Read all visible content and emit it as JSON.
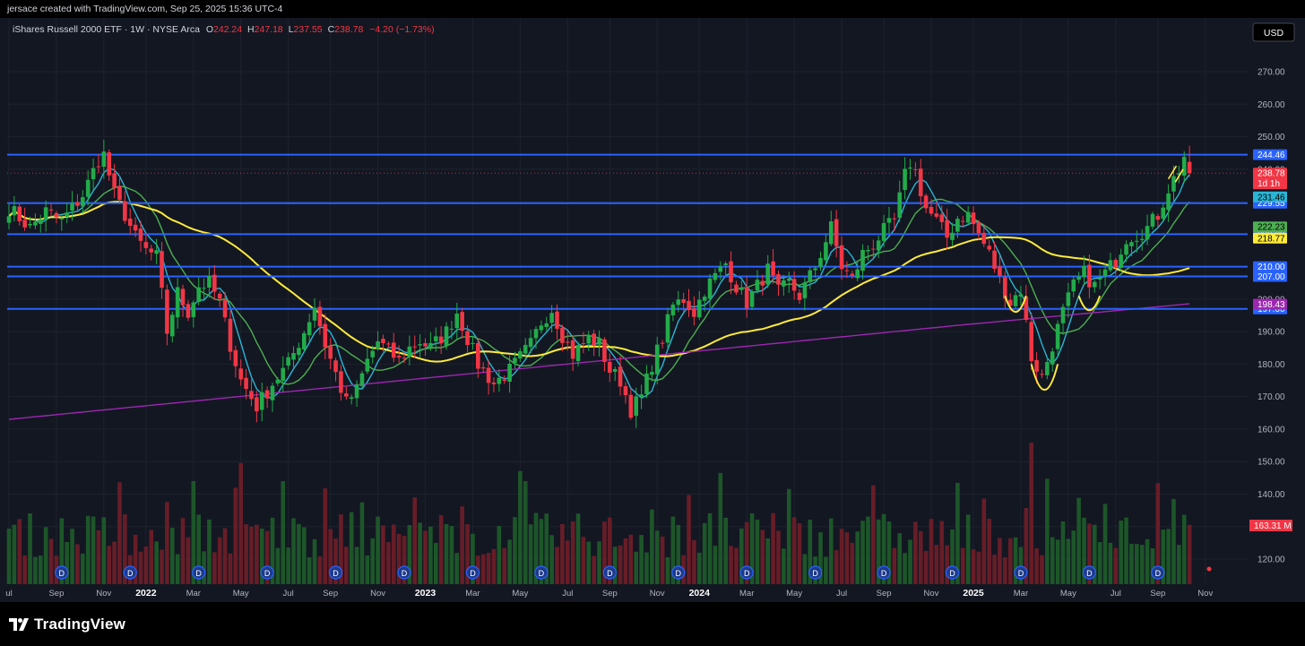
{
  "header": {
    "credit": "jersace created with TradingView.com, Sep 25, 2025 15:36 UTC-4"
  },
  "legend": {
    "symbol": "iShares Russell 2000 ETF · 1W · NYSE Arca",
    "o_label": "O",
    "o_value": "242.24",
    "h_label": "H",
    "h_value": "247.18",
    "l_label": "L",
    "l_value": "237.55",
    "c_label": "C",
    "c_value": "238.78",
    "change": "−4.20 (−1.73%)"
  },
  "currency_button": "USD",
  "footer": {
    "brand": "TradingView"
  },
  "colors": {
    "background": "#131722",
    "up": "#26a69a",
    "up_candle": "#22ab4a",
    "down": "#f23645",
    "level_line": "#2962ff",
    "ema_short": "#29b6d6",
    "ema_mid": "#4caf50",
    "sma_long": "#ffeb3b",
    "sma_200": "#9c27b0"
  },
  "chart_data": {
    "type": "candlestick",
    "interval": "1W",
    "y_axis": {
      "min": 110,
      "max": 280,
      "ticks": [
        120,
        130,
        140,
        150,
        160,
        170,
        180,
        190,
        200,
        210,
        220,
        230,
        240,
        250,
        260,
        270
      ]
    },
    "x_axis": {
      "labels": [
        "ul",
        "Sep",
        "Nov",
        "2022",
        "Mar",
        "May",
        "Jul",
        "Sep",
        "Nov",
        "2023",
        "Mar",
        "May",
        "Jul",
        "Sep",
        "Nov",
        "2024",
        "Mar",
        "May",
        "Jul",
        "Sep",
        "Nov",
        "2025",
        "Mar",
        "May",
        "Jul",
        "Sep",
        "Nov"
      ],
      "bold_labels": [
        "2022",
        "2023",
        "2024",
        "2025"
      ],
      "week_index": [
        0,
        9,
        18,
        26,
        35,
        44,
        53,
        61,
        70,
        79,
        88,
        97,
        106,
        114,
        123,
        131,
        140,
        149,
        158,
        166,
        175,
        183,
        192,
        201,
        210,
        218,
        227
      ]
    },
    "levels": [
      {
        "price": 244.46,
        "label": "244.46"
      },
      {
        "price": 229.55,
        "label": "229.55"
      },
      {
        "price": 220.0,
        "label": "220.00"
      },
      {
        "price": 210.0,
        "label": "210.00"
      },
      {
        "price": 207.0,
        "label": "207.00"
      },
      {
        "price": 197.0,
        "label": "197.00"
      }
    ],
    "price_tags": [
      {
        "price": 238.78,
        "label": "238.78",
        "sub": "1d 1h",
        "color": "#f23645"
      },
      {
        "price": 231.46,
        "label": "231.46",
        "color": "#29b6d6"
      },
      {
        "price": 222.23,
        "label": "222.23",
        "color": "#4caf50"
      },
      {
        "price": 218.77,
        "label": "218.77",
        "color": "#ffeb3b"
      },
      {
        "price": 198.43,
        "label": "198.43",
        "color": "#9c27b0"
      }
    ],
    "volume_tag": {
      "label": "163.31 M",
      "color": "#f23645"
    },
    "last_close": 238.78,
    "anchors": [
      [
        0,
        228
      ],
      [
        4,
        222
      ],
      [
        7,
        227
      ],
      [
        10,
        224
      ],
      [
        14,
        232
      ],
      [
        17,
        243
      ],
      [
        18,
        244.5
      ],
      [
        20,
        232
      ],
      [
        22,
        226
      ],
      [
        24,
        219
      ],
      [
        26,
        215
      ],
      [
        28,
        213
      ],
      [
        30,
        190
      ],
      [
        32,
        202
      ],
      [
        34,
        196
      ],
      [
        36,
        204
      ],
      [
        38,
        205
      ],
      [
        40,
        199
      ],
      [
        42,
        186
      ],
      [
        44,
        175
      ],
      [
        47,
        167
      ],
      [
        50,
        174
      ],
      [
        53,
        180
      ],
      [
        56,
        190
      ],
      [
        58,
        198
      ],
      [
        60,
        186
      ],
      [
        62,
        177
      ],
      [
        64,
        168
      ],
      [
        66,
        172
      ],
      [
        68,
        181
      ],
      [
        70,
        187
      ],
      [
        72,
        184
      ],
      [
        74,
        181
      ],
      [
        76,
        185
      ],
      [
        78,
        187
      ],
      [
        80,
        185
      ],
      [
        83,
        190
      ],
      [
        85,
        196
      ],
      [
        87,
        188
      ],
      [
        89,
        180
      ],
      [
        92,
        174
      ],
      [
        95,
        178
      ],
      [
        97,
        182
      ],
      [
        99,
        186
      ],
      [
        101,
        193
      ],
      [
        103,
        197
      ],
      [
        105,
        189
      ],
      [
        107,
        183
      ],
      [
        110,
        188
      ],
      [
        112,
        186
      ],
      [
        114,
        178
      ],
      [
        116,
        175
      ],
      [
        118,
        166
      ],
      [
        120,
        170
      ],
      [
        122,
        180
      ],
      [
        124,
        188
      ],
      [
        126,
        198
      ],
      [
        128,
        200
      ],
      [
        130,
        196
      ],
      [
        132,
        203
      ],
      [
        134,
        207
      ],
      [
        136,
        211
      ],
      [
        138,
        204
      ],
      [
        140,
        199
      ],
      [
        142,
        204
      ],
      [
        144,
        209
      ],
      [
        146,
        202
      ],
      [
        148,
        205
      ],
      [
        150,
        201
      ],
      [
        153,
        210
      ],
      [
        155,
        218
      ],
      [
        156,
        222
      ],
      [
        158,
        210
      ],
      [
        160,
        206
      ],
      [
        162,
        214
      ],
      [
        164,
        217
      ],
      [
        166,
        221
      ],
      [
        168,
        224
      ],
      [
        170,
        238
      ],
      [
        171,
        242
      ],
      [
        172,
        239
      ],
      [
        174,
        228
      ],
      [
        176,
        224
      ],
      [
        178,
        219
      ],
      [
        180,
        225
      ],
      [
        182,
        226
      ],
      [
        184,
        220
      ],
      [
        186,
        214
      ],
      [
        188,
        206
      ],
      [
        190,
        199
      ],
      [
        192,
        203
      ],
      [
        194,
        182
      ],
      [
        196,
        176
      ],
      [
        198,
        186
      ],
      [
        200,
        196
      ],
      [
        202,
        204
      ],
      [
        204,
        208
      ],
      [
        206,
        204
      ],
      [
        208,
        208
      ],
      [
        210,
        212
      ],
      [
        212,
        219
      ],
      [
        214,
        220
      ],
      [
        216,
        222
      ],
      [
        218,
        226
      ],
      [
        220,
        234
      ],
      [
        222,
        240
      ],
      [
        223,
        244
      ],
      [
        224,
        238.78
      ]
    ],
    "moving_averages": [
      {
        "color": "#29b6d6",
        "period": 5
      },
      {
        "color": "#4caf50",
        "period": 11
      },
      {
        "color": "#ffeb3b",
        "period": 40
      },
      {
        "color": "#9c27b0",
        "period": 200
      }
    ],
    "dividend_markers": [
      {
        "week": 10,
        "label": "D"
      },
      {
        "week": 23,
        "label": "D"
      },
      {
        "week": 36,
        "label": "D"
      },
      {
        "week": 49,
        "label": "D"
      },
      {
        "week": 62,
        "label": "D"
      },
      {
        "week": 75,
        "label": "D"
      },
      {
        "week": 88,
        "label": "D"
      },
      {
        "week": 101,
        "label": "D"
      },
      {
        "week": 114,
        "label": "D"
      },
      {
        "week": 127,
        "label": "D"
      },
      {
        "week": 140,
        "label": "D"
      },
      {
        "week": 153,
        "label": "D"
      },
      {
        "week": 166,
        "label": "D"
      },
      {
        "week": 179,
        "label": "D"
      },
      {
        "week": 192,
        "label": "D"
      },
      {
        "week": 205,
        "label": "D"
      },
      {
        "week": 218,
        "label": "D"
      }
    ]
  }
}
